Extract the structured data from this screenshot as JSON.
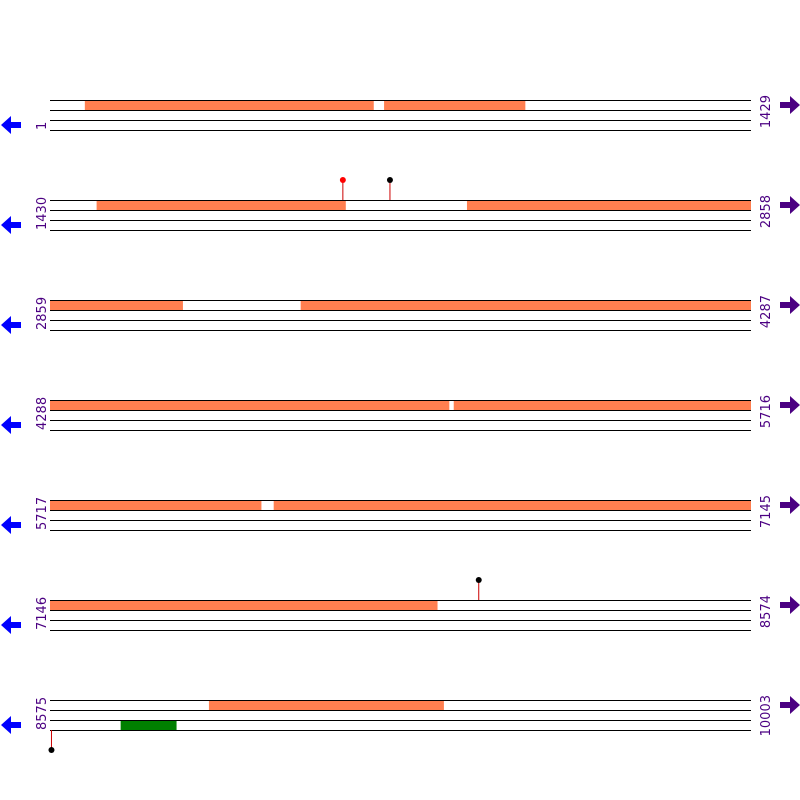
{
  "colors": {
    "line": "#000000",
    "block": "#ff7f50",
    "green_block": "#008000",
    "pin_red": "#ff0000",
    "pin_black": "#000000",
    "pin_stem": "#cc0000",
    "arrow_left": "#0000ff",
    "arrow_right": "#4b0082",
    "label": "#4b0082"
  },
  "icons": {
    "left": "arrow-left-icon",
    "right": "arrow-right-icon"
  },
  "row_length": 1429,
  "rows": [
    {
      "start": "1",
      "end": "1429",
      "blocks": [
        {
          "frame": 0,
          "from": 71,
          "to": 660
        },
        {
          "frame": 0,
          "from": 681,
          "to": 969
        }
      ],
      "green": [],
      "pins_above": [],
      "pins_below": []
    },
    {
      "start": "1430",
      "end": "2858",
      "blocks": [
        {
          "frame": 0,
          "from": 95,
          "to": 603
        },
        {
          "frame": 0,
          "from": 850,
          "to": 1429
        }
      ],
      "green": [],
      "pins_above": [
        {
          "pos": 597,
          "color": "red"
        },
        {
          "pos": 693,
          "color": "black"
        }
      ],
      "pins_below": []
    },
    {
      "start": "2859",
      "end": "4287",
      "blocks": [
        {
          "frame": 0,
          "from": 0,
          "to": 271
        },
        {
          "frame": 0,
          "from": 511,
          "to": 1429
        }
      ],
      "green": [],
      "pins_above": [],
      "pins_below": []
    },
    {
      "start": "4288",
      "end": "5716",
      "blocks": [
        {
          "frame": 0,
          "from": 0,
          "to": 814
        },
        {
          "frame": 0,
          "from": 823,
          "to": 1429
        }
      ],
      "green": [],
      "pins_above": [],
      "pins_below": []
    },
    {
      "start": "5717",
      "end": "7145",
      "blocks": [
        {
          "frame": 0,
          "from": 0,
          "to": 431
        },
        {
          "frame": 0,
          "from": 456,
          "to": 1429
        }
      ],
      "green": [],
      "pins_above": [],
      "pins_below": []
    },
    {
      "start": "7146",
      "end": "8574",
      "blocks": [
        {
          "frame": 0,
          "from": 0,
          "to": 790
        }
      ],
      "green": [],
      "pins_above": [
        {
          "pos": 874,
          "color": "black"
        }
      ],
      "pins_below": []
    },
    {
      "start": "8575",
      "end": "10003",
      "blocks": [
        {
          "frame": 0,
          "from": 324,
          "to": 803
        }
      ],
      "green": [
        {
          "frame": 2,
          "from": 144,
          "to": 258
        }
      ],
      "pins_above": [],
      "pins_below": [
        {
          "pos": 3,
          "color": "black"
        }
      ]
    }
  ]
}
